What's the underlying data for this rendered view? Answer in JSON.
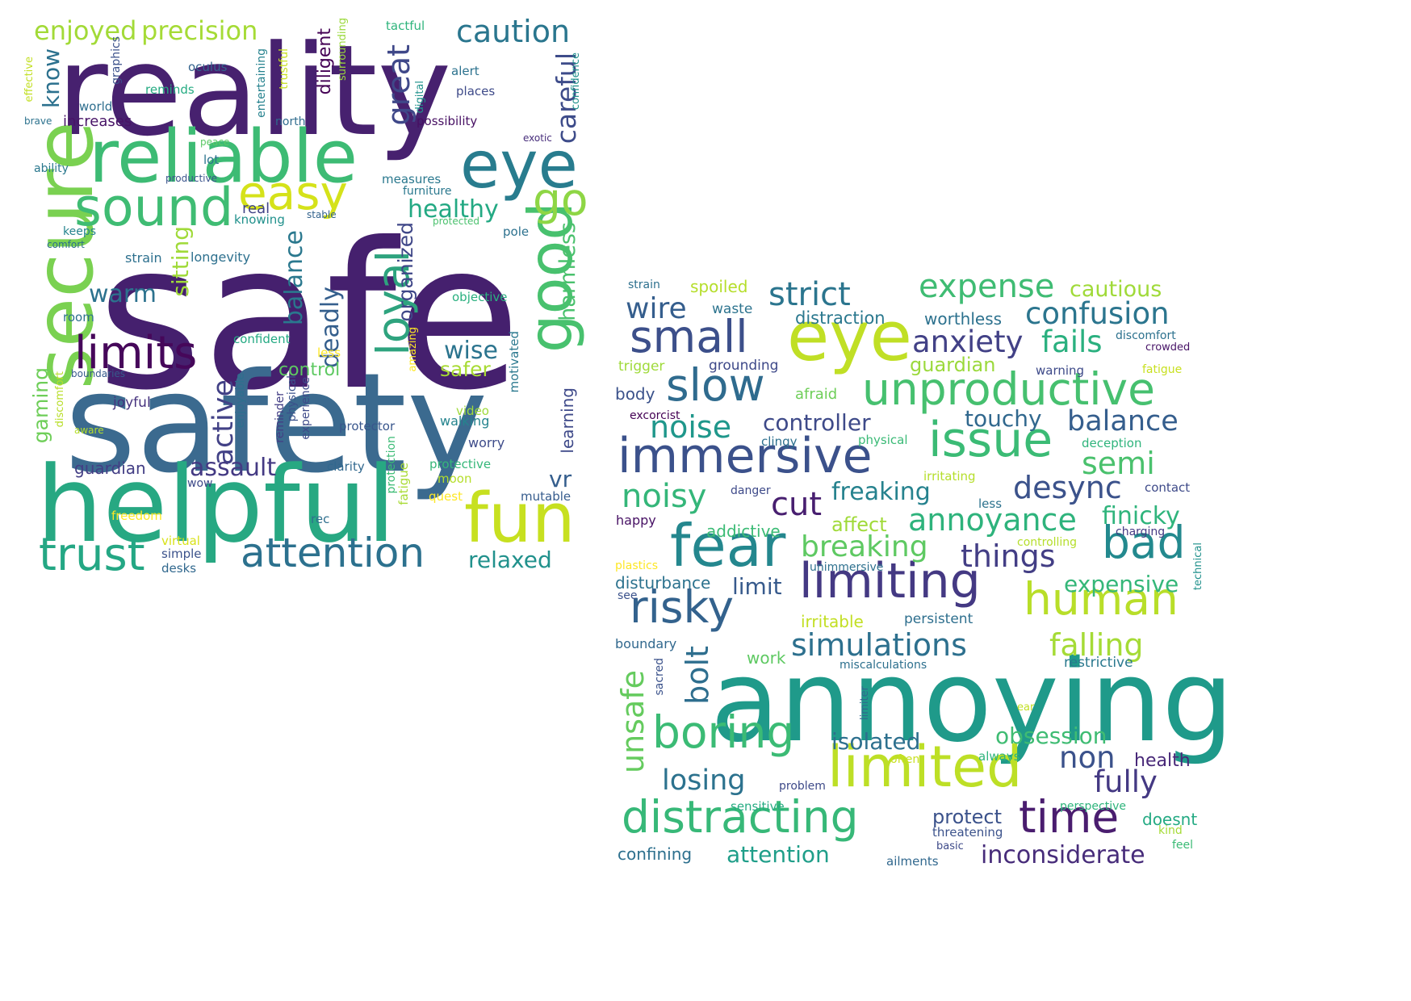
{
  "clouds": [
    {
      "name": "left",
      "words": [
        {
          "t": "safe",
          "c": "#45206e"
        },
        {
          "t": "safety",
          "c": "#3b6a8f"
        },
        {
          "t": "reality",
          "c": "#47216f"
        },
        {
          "t": "helpful",
          "c": "#27a882"
        },
        {
          "t": "reliable",
          "c": "#3dbb74"
        },
        {
          "t": "secure",
          "c": "#7ad151"
        },
        {
          "t": "fun",
          "c": "#c7e020"
        },
        {
          "t": "eye",
          "c": "#287c8e"
        },
        {
          "t": "sound",
          "c": "#3fbc73"
        },
        {
          "t": "easy",
          "c": "#d5e21a"
        },
        {
          "t": "limits",
          "c": "#46075a"
        },
        {
          "t": "trust",
          "c": "#24a784"
        },
        {
          "t": "attention",
          "c": "#2c718e"
        },
        {
          "t": "good",
          "c": "#48c16e"
        },
        {
          "t": "loyal",
          "c": "#2ea37e"
        },
        {
          "t": "go",
          "c": "#8ed645"
        },
        {
          "t": "caution",
          "c": "#2a768e"
        },
        {
          "t": "enjoyed",
          "c": "#a2da37"
        },
        {
          "t": "precision",
          "c": "#a5db36"
        },
        {
          "t": "healthy",
          "c": "#23a983"
        },
        {
          "t": "great",
          "c": "#3f4889"
        },
        {
          "t": "careful",
          "c": "#3e4c8a"
        },
        {
          "t": "warm",
          "c": "#2c728e"
        },
        {
          "t": "balance",
          "c": "#2a788e"
        },
        {
          "t": "deadly",
          "c": "#355f8d"
        },
        {
          "t": "wise",
          "c": "#2b748e"
        },
        {
          "t": "safer",
          "c": "#a8db34"
        },
        {
          "t": "harmless",
          "c": "#4ac16d"
        },
        {
          "t": "active",
          "c": "#424186"
        },
        {
          "t": "assault",
          "c": "#443a83"
        },
        {
          "t": "relaxed",
          "c": "#21918c"
        },
        {
          "t": "vr",
          "c": "#355e8d"
        },
        {
          "t": "sitting",
          "c": "#a0da39"
        },
        {
          "t": "organized",
          "c": "#3f4788"
        },
        {
          "t": "guardian",
          "c": "#433e85"
        },
        {
          "t": "gaming",
          "c": "#6ece58"
        },
        {
          "t": "know",
          "c": "#2c718e"
        },
        {
          "t": "control",
          "c": "#5ec962"
        },
        {
          "t": "learning",
          "c": "#3e4989"
        },
        {
          "t": "diligent",
          "c": "#440154"
        },
        {
          "t": "motivated",
          "c": "#2a788e"
        },
        {
          "t": "increases",
          "c": "#481467"
        },
        {
          "t": "longevity",
          "c": "#2d708e"
        },
        {
          "t": "real",
          "c": "#414487"
        },
        {
          "t": "knowing",
          "c": "#21918c"
        },
        {
          "t": "strain",
          "c": "#2d708e"
        },
        {
          "t": "objective",
          "c": "#2ab07f"
        },
        {
          "t": "confident",
          "c": "#24aa83"
        },
        {
          "t": "joyful",
          "c": "#46327e"
        },
        {
          "t": "protector",
          "c": "#39568c"
        },
        {
          "t": "walking",
          "c": "#25848e"
        },
        {
          "t": "video",
          "c": "#9fda3a"
        },
        {
          "t": "worry",
          "c": "#3e4c8a"
        },
        {
          "t": "protective",
          "c": "#35b779"
        },
        {
          "t": "clarity",
          "c": "#31688e"
        },
        {
          "t": "moon",
          "c": "#b5de2b"
        },
        {
          "t": "quest",
          "c": "#fde725"
        },
        {
          "t": "mutable",
          "c": "#365c8d"
        },
        {
          "t": "freedom",
          "c": "#fde725"
        },
        {
          "t": "virtual",
          "c": "#d8e219"
        },
        {
          "t": "simple",
          "c": "#3b528b"
        },
        {
          "t": "desks",
          "c": "#31688e"
        },
        {
          "t": "wow",
          "c": "#3e4989"
        },
        {
          "t": "rec",
          "c": "#2e6f8e"
        },
        {
          "t": "oculus",
          "c": "#33638d"
        },
        {
          "t": "reminds",
          "c": "#25ab82"
        },
        {
          "t": "world",
          "c": "#2e6e8e"
        },
        {
          "t": "graphics",
          "c": "#3b518b"
        },
        {
          "t": "effective",
          "c": "#c2df23"
        },
        {
          "t": "brave",
          "c": "#2c728e"
        },
        {
          "t": "north",
          "c": "#2f6c8e"
        },
        {
          "t": "entertaining",
          "c": "#26828e"
        },
        {
          "t": "trustful",
          "c": "#c8e020"
        },
        {
          "t": "surrounding",
          "c": "#9bd93c"
        },
        {
          "t": "tactful",
          "c": "#2fb47c"
        },
        {
          "t": "alert",
          "c": "#2c728e"
        },
        {
          "t": "places",
          "c": "#3e4a89"
        },
        {
          "t": "digital",
          "c": "#20928c"
        },
        {
          "t": "confidence",
          "c": "#21918c"
        },
        {
          "t": "possibility",
          "c": "#471063"
        },
        {
          "t": "exotic",
          "c": "#472d7b"
        },
        {
          "t": "peace",
          "c": "#5ac864"
        },
        {
          "t": "lot",
          "c": "#2c738e"
        },
        {
          "t": "ability",
          "c": "#2a788e"
        },
        {
          "t": "productive",
          "c": "#3a548c"
        },
        {
          "t": "measures",
          "c": "#2a788e"
        },
        {
          "t": "furniture",
          "c": "#2a788e"
        },
        {
          "t": "stable",
          "c": "#33638d"
        },
        {
          "t": "protected",
          "c": "#4ac16d"
        },
        {
          "t": "keeps",
          "c": "#25848e"
        },
        {
          "t": "comfort",
          "c": "#2d708e"
        },
        {
          "t": "pole",
          "c": "#2c718e"
        },
        {
          "t": "room",
          "c": "#2d708e"
        },
        {
          "t": "less",
          "c": "#fde725"
        },
        {
          "t": "amazing",
          "c": "#fde725"
        },
        {
          "t": "boundaries",
          "c": "#375a8c"
        },
        {
          "t": "discomfort",
          "c": "#b8de29"
        },
        {
          "t": "aware",
          "c": "#b5de2b"
        },
        {
          "t": "enjoyable",
          "c": "#2d708e"
        },
        {
          "t": "reminder",
          "c": "#433e85"
        },
        {
          "t": "physical",
          "c": "#3b528b"
        },
        {
          "t": "experience",
          "c": "#3e4a89"
        },
        {
          "t": "protection",
          "c": "#3bbb75"
        },
        {
          "t": "fatigue",
          "c": "#a8db34"
        }
      ]
    },
    {
      "name": "right",
      "words": [
        {
          "t": "annoying",
          "c": "#1f9a8a"
        },
        {
          "t": "eye",
          "c": "#c0df25"
        },
        {
          "t": "limited",
          "c": "#bddf26"
        },
        {
          "t": "immersive",
          "c": "#3b518b"
        },
        {
          "t": "fear",
          "c": "#24878e"
        },
        {
          "t": "distracting",
          "c": "#37b878"
        },
        {
          "t": "unproductive",
          "c": "#46c06f"
        },
        {
          "t": "limiting",
          "c": "#443983"
        },
        {
          "t": "issue",
          "c": "#3bbb75"
        },
        {
          "t": "small",
          "c": "#3c4f8a"
        },
        {
          "t": "slow",
          "c": "#2f6b8e"
        },
        {
          "t": "risky",
          "c": "#33628d"
        },
        {
          "t": "boring",
          "c": "#3bbb75"
        },
        {
          "t": "time",
          "c": "#4a1d6f"
        },
        {
          "t": "human",
          "c": "#b8de29"
        },
        {
          "t": "bad",
          "c": "#23898e"
        },
        {
          "t": "expense",
          "c": "#3fbc73"
        },
        {
          "t": "confusion",
          "c": "#2b758e"
        },
        {
          "t": "strict",
          "c": "#2b758e"
        },
        {
          "t": "anxiety",
          "c": "#424186"
        },
        {
          "t": "fails",
          "c": "#2ab07f"
        },
        {
          "t": "noise",
          "c": "#1f978b"
        },
        {
          "t": "noisy",
          "c": "#34b679"
        },
        {
          "t": "desync",
          "c": "#3b528b"
        },
        {
          "t": "annoyance",
          "c": "#2eb37c"
        },
        {
          "t": "simulations",
          "c": "#2d708e"
        },
        {
          "t": "falling",
          "c": "#a5db36"
        },
        {
          "t": "semi",
          "c": "#4ac16d"
        },
        {
          "t": "balance",
          "c": "#355e8d"
        },
        {
          "t": "breaking",
          "c": "#5ec962"
        },
        {
          "t": "things",
          "c": "#433e85"
        },
        {
          "t": "fully",
          "c": "#443983"
        },
        {
          "t": "non",
          "c": "#3b528b"
        },
        {
          "t": "cut",
          "c": "#481f70"
        },
        {
          "t": "unsafe",
          "c": "#65cb5e"
        },
        {
          "t": "losing",
          "c": "#2c728e"
        },
        {
          "t": "bolt",
          "c": "#2e6e8e"
        },
        {
          "t": "wire",
          "c": "#355e8d"
        },
        {
          "t": "controller",
          "c": "#3e4a89"
        },
        {
          "t": "touchy",
          "c": "#31688e"
        },
        {
          "t": "freaking",
          "c": "#26828e"
        },
        {
          "t": "finicky",
          "c": "#2fb47c"
        },
        {
          "t": "expensive",
          "c": "#35b779"
        },
        {
          "t": "isolated",
          "c": "#2d708e"
        },
        {
          "t": "obsession",
          "c": "#3fbc73"
        },
        {
          "t": "inconsiderate",
          "c": "#472c7a"
        },
        {
          "t": "attention",
          "c": "#1f9e89"
        },
        {
          "t": "cautious",
          "c": "#a0da39"
        },
        {
          "t": "spoiled",
          "c": "#b5de2b"
        },
        {
          "t": "distraction",
          "c": "#2a788e"
        },
        {
          "t": "worthless",
          "c": "#2c718e"
        },
        {
          "t": "guardian",
          "c": "#9bd93c"
        },
        {
          "t": "grounding",
          "c": "#3e4989"
        },
        {
          "t": "afraid",
          "c": "#6ece58"
        },
        {
          "t": "body",
          "c": "#3b528b"
        },
        {
          "t": "limit",
          "c": "#375a8c"
        },
        {
          "t": "disturbance",
          "c": "#2c728e"
        },
        {
          "t": "irritable",
          "c": "#c2df23"
        },
        {
          "t": "persistent",
          "c": "#2e6f8e"
        },
        {
          "t": "boundary",
          "c": "#31688e"
        },
        {
          "t": "work",
          "c": "#5ec962"
        },
        {
          "t": "miscalculations",
          "c": "#2d708e"
        },
        {
          "t": "restrictive",
          "c": "#2a788e"
        },
        {
          "t": "protect",
          "c": "#3b528b"
        },
        {
          "t": "doesnt",
          "c": "#24aa83"
        },
        {
          "t": "health",
          "c": "#482878"
        },
        {
          "t": "confining",
          "c": "#2d708e"
        },
        {
          "t": "affect",
          "c": "#a0da39"
        },
        {
          "t": "addictive",
          "c": "#3bbb75"
        },
        {
          "t": "strain",
          "c": "#2d708e"
        },
        {
          "t": "waste",
          "c": "#2c738e"
        },
        {
          "t": "trigger",
          "c": "#9fda3a"
        },
        {
          "t": "excorcist",
          "c": "#440154"
        },
        {
          "t": "clingy",
          "c": "#2d708e"
        },
        {
          "t": "physical",
          "c": "#3aba76"
        },
        {
          "t": "irritating",
          "c": "#b5de2b"
        },
        {
          "t": "danger",
          "c": "#3e4a89"
        },
        {
          "t": "happy",
          "c": "#471164"
        },
        {
          "t": "plastics",
          "c": "#fde725"
        },
        {
          "t": "see",
          "c": "#3b528b"
        },
        {
          "t": "unimmersive",
          "c": "#2d708e"
        },
        {
          "t": "controlling",
          "c": "#b5de2b"
        },
        {
          "t": "charging",
          "c": "#443983"
        },
        {
          "t": "contact",
          "c": "#3e4a89"
        },
        {
          "t": "less",
          "c": "#2c728e"
        },
        {
          "t": "deception",
          "c": "#2fb47c"
        },
        {
          "t": "warning",
          "c": "#3e4a89"
        },
        {
          "t": "fatigue",
          "c": "#c8e020"
        },
        {
          "t": "discomfort",
          "c": "#2c718e"
        },
        {
          "t": "crowded",
          "c": "#481467"
        },
        {
          "t": "technical",
          "c": "#21918c"
        },
        {
          "t": "sacred",
          "c": "#3b528b"
        },
        {
          "t": "limiter",
          "c": "#31688e"
        },
        {
          "t": "ear",
          "c": "#c2df23"
        },
        {
          "t": "often",
          "c": "#c8e020"
        },
        {
          "t": "always",
          "c": "#2fb47c"
        },
        {
          "t": "problem",
          "c": "#3e4a89"
        },
        {
          "t": "sensitive",
          "c": "#25ab82"
        },
        {
          "t": "perspective",
          "c": "#2fb47c"
        },
        {
          "t": "threatening",
          "c": "#3b528b"
        },
        {
          "t": "basic",
          "c": "#3e4a89"
        },
        {
          "t": "kind",
          "c": "#a5db36"
        },
        {
          "t": "feel",
          "c": "#3bbb75"
        },
        {
          "t": "ailments",
          "c": "#31688e"
        }
      ]
    }
  ]
}
